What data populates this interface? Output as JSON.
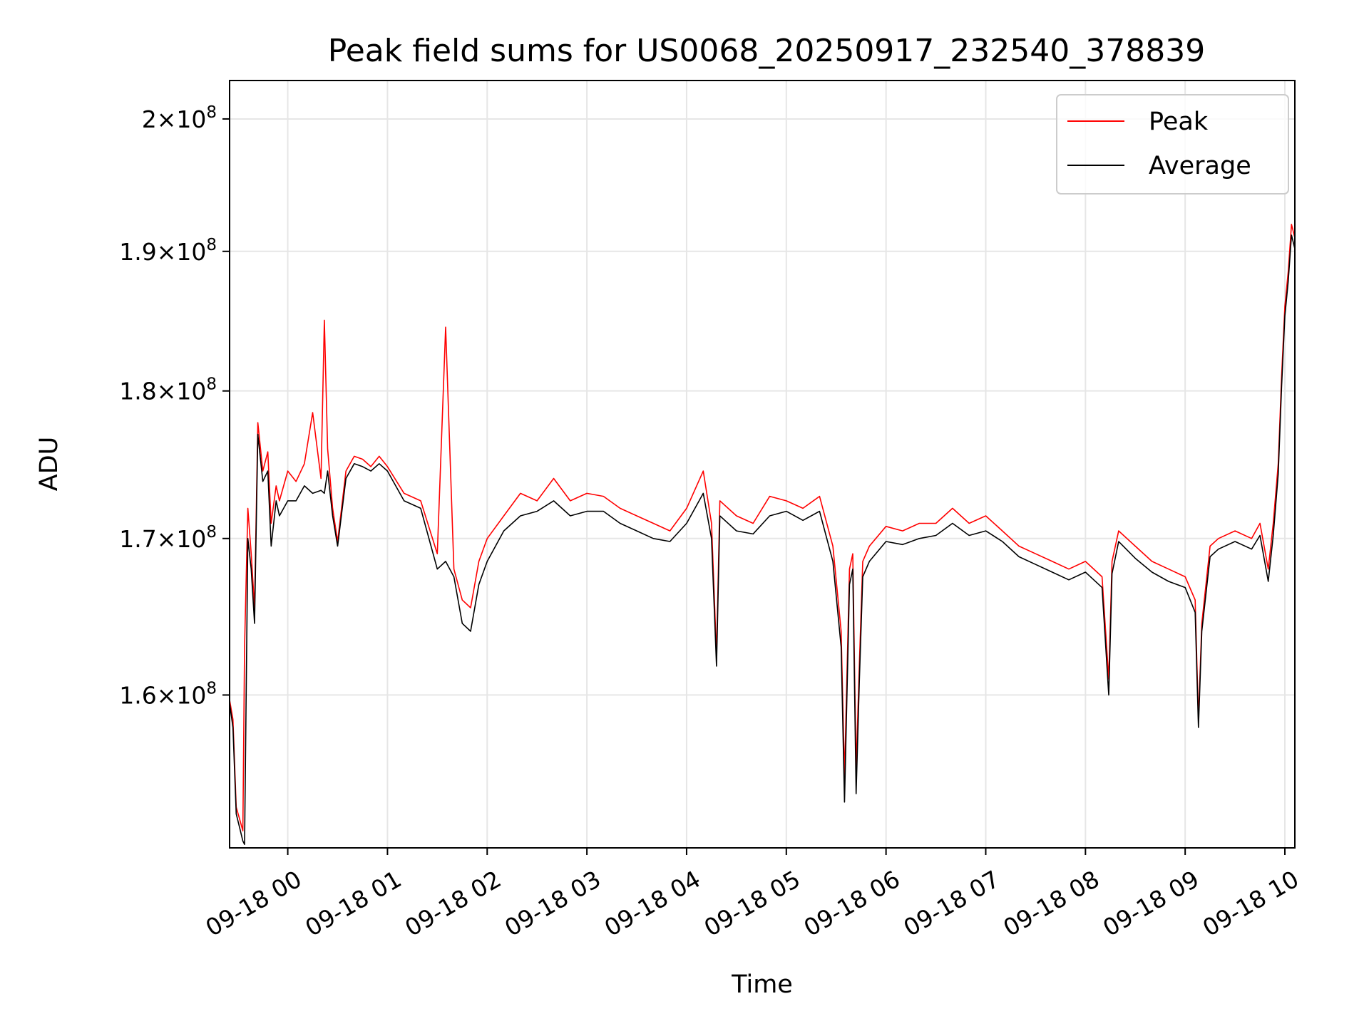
{
  "chart_data": {
    "type": "line",
    "title": "Peak field sums for US0068_20250917_232540_378839",
    "xlabel": "Time",
    "ylabel": "ADU",
    "y_scale": "log",
    "ylim": [
      150800000,
      203000000
    ],
    "xlim": [
      "09-17 23:25",
      "09-18 10:06"
    ],
    "grid": true,
    "legend_position": "top-right",
    "x_ticks": [
      "09-18 00",
      "09-18 01",
      "09-18 02",
      "09-18 03",
      "09-18 04",
      "09-18 05",
      "09-18 06",
      "09-18 07",
      "09-18 08",
      "09-18 09",
      "09-18 10"
    ],
    "y_ticks": [
      {
        "value": 160000000,
        "mantissa": "1.6"
      },
      {
        "value": 170000000,
        "mantissa": "1.7"
      },
      {
        "value": 180000000,
        "mantissa": "1.8"
      },
      {
        "value": 190000000,
        "mantissa": "1.9"
      },
      {
        "value": 200000000,
        "mantissa": "2"
      }
    ],
    "y_tick_suffix": "×10",
    "y_tick_exponent": "8",
    "x": [
      "09-17 23:25",
      "09-17 23:27",
      "09-17 23:29",
      "09-17 23:31",
      "09-17 23:33",
      "09-17 23:34",
      "09-17 23:36",
      "09-17 23:38",
      "09-17 23:40",
      "09-17 23:42",
      "09-17 23:45",
      "09-17 23:48",
      "09-17 23:50",
      "09-17 23:53",
      "09-17 23:55",
      "09-18 00:00",
      "09-18 00:05",
      "09-18 00:10",
      "09-18 00:15",
      "09-18 00:20",
      "09-18 00:22",
      "09-18 00:24",
      "09-18 00:27",
      "09-18 00:30",
      "09-18 00:35",
      "09-18 00:40",
      "09-18 00:45",
      "09-18 00:50",
      "09-18 00:55",
      "09-18 01:00",
      "09-18 01:10",
      "09-18 01:20",
      "09-18 01:30",
      "09-18 01:35",
      "09-18 01:40",
      "09-18 01:45",
      "09-18 01:50",
      "09-18 01:55",
      "09-18 02:00",
      "09-18 02:10",
      "09-18 02:20",
      "09-18 02:30",
      "09-18 02:40",
      "09-18 02:50",
      "09-18 03:00",
      "09-18 03:10",
      "09-18 03:20",
      "09-18 03:30",
      "09-18 03:40",
      "09-18 03:50",
      "09-18 04:00",
      "09-18 04:10",
      "09-18 04:15",
      "09-18 04:18",
      "09-18 04:20",
      "09-18 04:30",
      "09-18 04:40",
      "09-18 04:50",
      "09-18 05:00",
      "09-18 05:10",
      "09-18 05:20",
      "09-18 05:28",
      "09-18 05:33",
      "09-18 05:35",
      "09-18 05:38",
      "09-18 05:40",
      "09-18 05:42",
      "09-18 05:44",
      "09-18 05:46",
      "09-18 05:50",
      "09-18 06:00",
      "09-18 06:10",
      "09-18 06:20",
      "09-18 06:30",
      "09-18 06:40",
      "09-18 06:50",
      "09-18 07:00",
      "09-18 07:10",
      "09-18 07:20",
      "09-18 07:30",
      "09-18 07:40",
      "09-18 07:50",
      "09-18 08:00",
      "09-18 08:10",
      "09-18 08:14",
      "09-18 08:16",
      "09-18 08:20",
      "09-18 08:30",
      "09-18 08:40",
      "09-18 08:50",
      "09-18 09:00",
      "09-18 09:06",
      "09-18 09:08",
      "09-18 09:10",
      "09-18 09:15",
      "09-18 09:20",
      "09-18 09:30",
      "09-18 09:40",
      "09-18 09:45",
      "09-18 09:50",
      "09-18 09:53",
      "09-18 09:56",
      "09-18 09:58",
      "09-18 10:00",
      "09-18 10:02",
      "09-18 10:04",
      "09-18 10:06"
    ],
    "series": [
      {
        "name": "Peak",
        "color": "#ff0000",
        "values": [
          159700000,
          158500000,
          153200000,
          152500000,
          151800000,
          163000000,
          172000000,
          169000000,
          165500000,
          177800000,
          174500000,
          175800000,
          171000000,
          173500000,
          172500000,
          174500000,
          173800000,
          175000000,
          178500000,
          174000000,
          185000000,
          176000000,
          172000000,
          169800000,
          174500000,
          175500000,
          175300000,
          174800000,
          175500000,
          174800000,
          173000000,
          172500000,
          169000000,
          184500000,
          168000000,
          166000000,
          165500000,
          168500000,
          170000000,
          171500000,
          173000000,
          172500000,
          174000000,
          172500000,
          173000000,
          172800000,
          172000000,
          171500000,
          171000000,
          170500000,
          172000000,
          174500000,
          171000000,
          162500000,
          172500000,
          171500000,
          171000000,
          172800000,
          172500000,
          172000000,
          172800000,
          169500000,
          164000000,
          155000000,
          168000000,
          169000000,
          155500000,
          162000000,
          168500000,
          169500000,
          170800000,
          170500000,
          171000000,
          171000000,
          172000000,
          171000000,
          171500000,
          170500000,
          169500000,
          169000000,
          168500000,
          168000000,
          168500000,
          167500000,
          161000000,
          168500000,
          170500000,
          169500000,
          168500000,
          168000000,
          167500000,
          166000000,
          158500000,
          164500000,
          169500000,
          170000000,
          170500000,
          170000000,
          171000000,
          168000000,
          171000000,
          175000000,
          181000000,
          186000000,
          188500000,
          192000000,
          191000000
        ]
      },
      {
        "name": "Average",
        "color": "#000000",
        "values": [
          159500000,
          158000000,
          152800000,
          152000000,
          151200000,
          151000000,
          170000000,
          168000000,
          164500000,
          177000000,
          173800000,
          174500000,
          169500000,
          172500000,
          171500000,
          172500000,
          172500000,
          173500000,
          173000000,
          173200000,
          173000000,
          174500000,
          171500000,
          169500000,
          174000000,
          175000000,
          174800000,
          174500000,
          175000000,
          174500000,
          172500000,
          172000000,
          168000000,
          168500000,
          167500000,
          164500000,
          164000000,
          167000000,
          168500000,
          170500000,
          171500000,
          171800000,
          172500000,
          171500000,
          171800000,
          171800000,
          171000000,
          170500000,
          170000000,
          169800000,
          171000000,
          173000000,
          170000000,
          161800000,
          171500000,
          170500000,
          170300000,
          171500000,
          171800000,
          171200000,
          171800000,
          168500000,
          163000000,
          153500000,
          167000000,
          168000000,
          154000000,
          161000000,
          167500000,
          168500000,
          169800000,
          169600000,
          170000000,
          170200000,
          171000000,
          170200000,
          170500000,
          169800000,
          168800000,
          168300000,
          167800000,
          167300000,
          167800000,
          166800000,
          160000000,
          167700000,
          169800000,
          168700000,
          167800000,
          167200000,
          166800000,
          165200000,
          158000000,
          164000000,
          168800000,
          169300000,
          169800000,
          169300000,
          170200000,
          167200000,
          170200000,
          174300000,
          180300000,
          185300000,
          187800000,
          191200000,
          190200000
        ]
      }
    ]
  }
}
